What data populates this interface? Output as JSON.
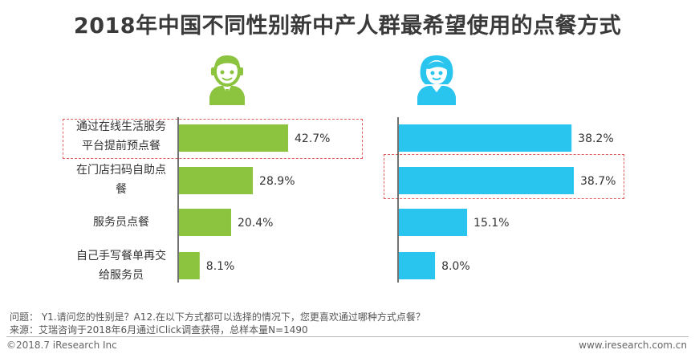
{
  "title": "2018年中国不同性别新中产人群最希望使用的点餐方式",
  "icons": {
    "male": "male-person-icon",
    "female": "female-person-icon"
  },
  "colors": {
    "male_bar": "#8dc43f",
    "female_bar": "#29c5ee",
    "highlight": "#e05b5b",
    "axis": "#444444"
  },
  "categories": [
    [
      "通过在线生活服务",
      "平台提前预点餐"
    ],
    [
      "在门店扫码自助点",
      "餐"
    ],
    [
      "服务员点餐"
    ],
    [
      "自己手写餐单再交",
      "给服务员"
    ]
  ],
  "chart_data": {
    "type": "bar",
    "orientation": "horizontal",
    "title": "2018年中国不同性别新中产人群最希望使用的点餐方式",
    "categories": [
      "通过在线生活服务平台提前预点餐",
      "在门店扫码自助点餐",
      "服务员点餐",
      "自己手写餐单再交给服务员"
    ],
    "series": [
      {
        "name": "",
        "icon": "male-person-icon",
        "values": [
          42.7,
          28.9,
          20.4,
          8.1
        ],
        "labels": [
          "42.7%",
          "28.9%",
          "20.4%",
          "8.1%"
        ]
      },
      {
        "name": "",
        "icon": "female-person-icon",
        "values": [
          38.2,
          38.7,
          15.1,
          8.0
        ],
        "labels": [
          "38.2%",
          "38.7%",
          "15.1%",
          "8.0%"
        ]
      }
    ],
    "unit": "%",
    "highlights": [
      {
        "series": 0,
        "category": 0
      },
      {
        "series": 1,
        "category": 1
      }
    ]
  },
  "notes": {
    "question": "问题： Y1.请问您的性别是？A12.在以下方式都可以选择的情况下，您更喜欢通过哪种方式点餐？",
    "source": "来源：艾瑞咨询于2018年6月通过iClick调查获得，总样本量N=1490"
  },
  "footer": {
    "copyright": "©2018.7 iResearch Inc",
    "url": "www.iresearch.com.cn"
  }
}
